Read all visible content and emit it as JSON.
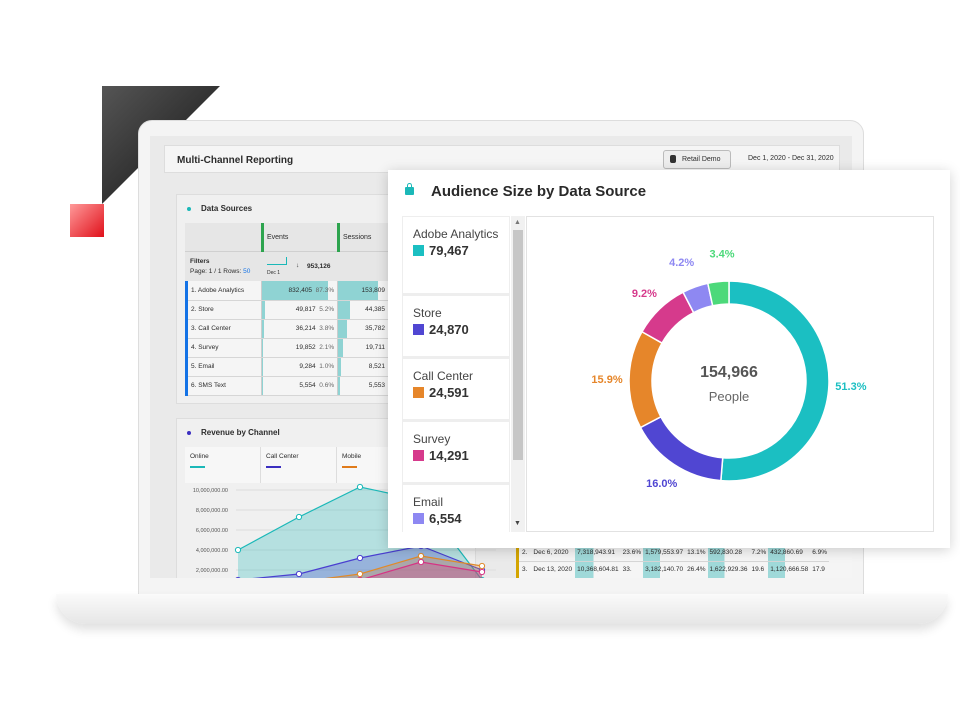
{
  "window": {
    "title": "Multi-Channel Reporting",
    "project_button": "Retail Demo",
    "date_range": "Dec 1, 2020 - Dec 31, 2020"
  },
  "data_sources": {
    "title": "Data Sources",
    "columns": [
      "Events",
      "Sessions"
    ],
    "filters_label": "Filters",
    "page_info": "Page: 1 / 1 Rows:",
    "rows_count": "50",
    "spark_label": "Dec 1",
    "events_total": "953,126",
    "rows": [
      {
        "name": "1.  Adobe Analytics",
        "events": "832,405",
        "pct": "87.3%",
        "share": 87.3,
        "sessions": "153,809",
        "sshare": 100
      },
      {
        "name": "2.  Store",
        "events": "49,817",
        "pct": "5.2%",
        "share": 5.2,
        "sessions": "44,385",
        "sshare": 29
      },
      {
        "name": "3.  Call Center",
        "events": "36,214",
        "pct": "3.8%",
        "share": 3.8,
        "sessions": "35,782",
        "sshare": 23
      },
      {
        "name": "4.  Survey",
        "events": "19,852",
        "pct": "2.1%",
        "share": 2.1,
        "sessions": "19,711",
        "sshare": 13
      },
      {
        "name": "5.  Email",
        "events": "9,284",
        "pct": "1.0%",
        "share": 1.0,
        "sessions": "8,521",
        "sshare": 6
      },
      {
        "name": "6.  SMS Text",
        "events": "5,554",
        "pct": "0.6%",
        "share": 0.6,
        "sessions": "5,553",
        "sshare": 4
      }
    ]
  },
  "revenue": {
    "title": "Revenue by Channel",
    "legend": [
      {
        "name": "Online",
        "color": "#1bb8b8"
      },
      {
        "name": "Call Center",
        "color": "#3b2fc0"
      },
      {
        "name": "Mobile",
        "color": "#e07b1a"
      }
    ],
    "yticks": [
      "10,000,000.00",
      "8,000,000.00",
      "6,000,000.00",
      "4,000,000.00",
      "2,000,000.00"
    ]
  },
  "chart_data": [
    {
      "type": "area",
      "yticks": [
        10000000,
        8000000,
        6000000,
        4000000,
        2000000
      ],
      "series": [
        {
          "name": "Online",
          "color": "#1bb8b8",
          "values": [
            4000000,
            7300000,
            10300000,
            9000000,
            1000000
          ]
        },
        {
          "name": "Call Center",
          "color": "#4a3fd0",
          "values": [
            1000000,
            1600000,
            3200000,
            4400000,
            2000000
          ]
        },
        {
          "name": "Mobile",
          "color": "#e08a2a",
          "values": [
            500000,
            800000,
            1600000,
            3400000,
            2400000
          ]
        },
        {
          "color": "#d63384",
          "values": [
            300000,
            500000,
            1000000,
            2800000,
            1800000
          ]
        }
      ]
    },
    {
      "type": "pie",
      "title": "Audience Size by Data Source",
      "center_value": "154,966",
      "center_label": "People",
      "slices": [
        {
          "label": "Adobe Analytics",
          "value": "79,467",
          "pct": 51.3,
          "pct_label": "51.3%",
          "color": "#1bbfc2"
        },
        {
          "label": "Store",
          "value": "24,870",
          "pct": 16.0,
          "pct_label": "16.0%",
          "color": "#5046d2"
        },
        {
          "label": "Call Center",
          "value": "24,591",
          "pct": 15.9,
          "pct_label": "15.9%",
          "color": "#e6862a"
        },
        {
          "label": "Survey",
          "value": "14,291",
          "pct": 9.2,
          "pct_label": "9.2%",
          "color": "#d63a8c"
        },
        {
          "label": "Email",
          "value": "6,554",
          "pct": 4.2,
          "pct_label": "4.2%",
          "color": "#8e88f2"
        },
        {
          "pct": 3.4,
          "pct_label": "3.4%",
          "color": "#4cd97a"
        }
      ]
    }
  ],
  "weekly_table": {
    "rows": [
      {
        "idx": "2.",
        "date": "Dec 6, 2020",
        "cells": [
          "7,318,943.91",
          "23.6%",
          "1,579,553.97",
          "13.1%",
          "592,830.28",
          "7.2%",
          "432,860.69",
          "6.9%"
        ]
      },
      {
        "idx": "3.",
        "date": "Dec 13, 2020",
        "cells": [
          "10,368,604.81",
          "33.",
          "3,182,140.70",
          "26.4%",
          "1,622,929.36",
          "19.6",
          "1,120,666.58",
          "17.9"
        ]
      }
    ]
  }
}
